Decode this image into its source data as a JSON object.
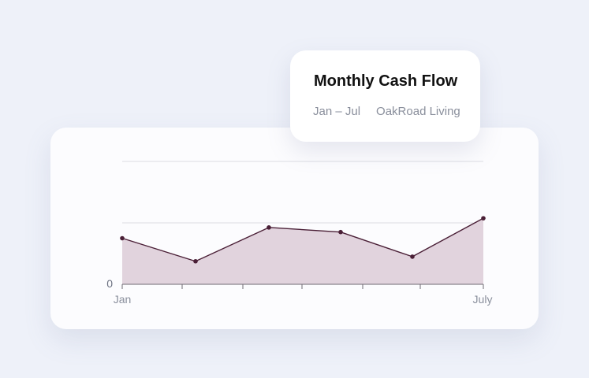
{
  "header": {
    "title": "Monthly Cash Flow",
    "period": "Jan – Jul",
    "company": "OakRoad Living"
  },
  "colors": {
    "line": "#4a1f36",
    "fill": "#e1d3dd",
    "grid": "#dcdde3",
    "axis": "#6e6a72"
  },
  "chart_data": {
    "type": "area",
    "x": [
      "Jan",
      "",
      "",
      "",
      "",
      "",
      "July"
    ],
    "x_tick_labels": [
      "Jan",
      "July"
    ],
    "values": [
      0.3,
      0.15,
      0.37,
      0.34,
      0.18,
      0.43,
      0.43
    ],
    "y_tick_labels": [
      "0"
    ],
    "ylim": [
      0,
      0.8
    ],
    "grid": true,
    "xlabel": "",
    "ylabel": "",
    "title": "Monthly Cash Flow"
  }
}
